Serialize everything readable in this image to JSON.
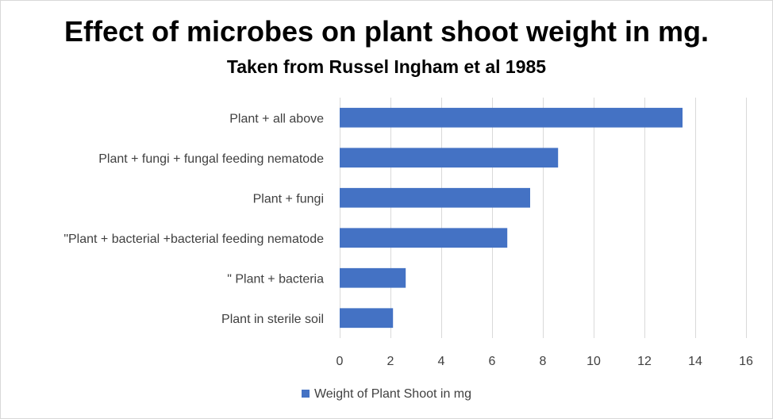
{
  "chart_data": {
    "type": "bar",
    "orientation": "horizontal",
    "title": "Effect of microbes on plant shoot weight in mg.",
    "subtitle": "Taken from Russel Ingham et al 1985",
    "categories": [
      "Plant + all above",
      "Plant + fungi + fungal feeding nematode",
      "Plant + fungi",
      "\"Plant + bacterial +bacterial feeding nematode",
      "\" Plant + bacteria",
      "Plant in sterile soil"
    ],
    "series": [
      {
        "name": "Weight of Plant Shoot in mg",
        "color": "#4472c4",
        "values": [
          13.5,
          8.6,
          7.5,
          6.6,
          2.6,
          2.1
        ]
      }
    ],
    "xlim": [
      0,
      16
    ],
    "xticks": [
      "0",
      "2",
      "4",
      "6",
      "8",
      "10",
      "12",
      "14",
      "16"
    ],
    "grid": "vertical",
    "legend_position": "bottom"
  }
}
